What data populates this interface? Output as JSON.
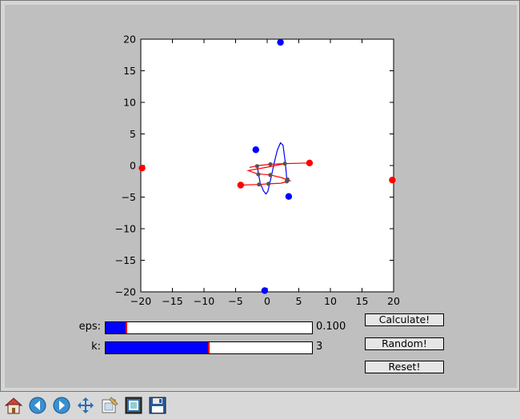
{
  "chart_data": {
    "type": "scatter",
    "xlim": [
      -20,
      20
    ],
    "ylim": [
      -20,
      20
    ],
    "xticks": [
      "−20",
      "−15",
      "−10",
      "−5",
      "0",
      "5",
      "10",
      "15",
      "20"
    ],
    "yticks": [
      "20",
      "15",
      "10",
      "5",
      "0",
      "−5",
      "−10",
      "−15",
      "−20"
    ],
    "grid": false,
    "series": [
      {
        "color": "#0000ff",
        "marker": "circle",
        "points": [
          [
            2.1,
            19.5
          ],
          [
            -1.8,
            2.5
          ],
          [
            3.4,
            -4.9
          ],
          [
            -0.4,
            -19.8
          ]
        ]
      },
      {
        "color": "#ff0000",
        "marker": "circle",
        "points": [
          [
            -19.8,
            -0.4
          ],
          [
            -4.2,
            -3.1
          ],
          [
            6.7,
            0.4
          ],
          [
            19.8,
            -2.3
          ]
        ]
      },
      {
        "color": "#555555",
        "marker": "small-circle",
        "points": [
          [
            -1.6,
            -0.1
          ],
          [
            0.5,
            0.2
          ],
          [
            2.8,
            0.3
          ],
          [
            -1.4,
            -1.4
          ],
          [
            0.5,
            -1.5
          ],
          [
            3.2,
            -2.2
          ],
          [
            -1.3,
            -3.0
          ],
          [
            0.2,
            -2.9
          ],
          [
            3.1,
            -2.5
          ]
        ]
      }
    ],
    "curves": [
      {
        "color": "#0000ff",
        "points": [
          [
            -1.6,
            0.2
          ],
          [
            -1.4,
            -1.2
          ],
          [
            -1.1,
            -2.8
          ],
          [
            -0.6,
            -4.0
          ],
          [
            -0.2,
            -4.5
          ],
          [
            0.1,
            -4.1
          ],
          [
            0.6,
            -2.0
          ],
          [
            1.1,
            0.4
          ],
          [
            1.6,
            2.4
          ],
          [
            2.1,
            3.6
          ],
          [
            2.5,
            3.2
          ],
          [
            2.8,
            1.0
          ],
          [
            3.0,
            -1.0
          ],
          [
            3.1,
            -2.4
          ]
        ]
      },
      {
        "color": "#ff0000",
        "points": [
          [
            -2.8,
            -0.3
          ],
          [
            -1.4,
            0.0
          ],
          [
            0.6,
            0.2
          ],
          [
            2.8,
            0.3
          ],
          [
            6.7,
            0.4
          ],
          [
            2.8,
            0.3
          ],
          [
            -0.2,
            -0.3
          ],
          [
            -3.0,
            -0.8
          ],
          [
            -1.6,
            -1.3
          ],
          [
            0.5,
            -1.5
          ],
          [
            2.2,
            -1.9
          ],
          [
            3.6,
            -2.4
          ],
          [
            2.2,
            -2.8
          ],
          [
            0.2,
            -2.9
          ],
          [
            -1.3,
            -3.0
          ],
          [
            -4.2,
            -3.1
          ]
        ]
      }
    ]
  },
  "sliders": {
    "eps": {
      "label": "eps:",
      "value_text": "0.100",
      "fraction": 0.1
    },
    "k": {
      "label": "k:",
      "value_text": "3",
      "fraction": 0.5
    }
  },
  "buttons": {
    "calculate": "Calculate!",
    "random": "Random!",
    "reset": "Reset!"
  },
  "toolbar": {
    "icons": [
      "home-icon",
      "back-arrow-icon",
      "forward-arrow-icon",
      "pan-move-icon",
      "configure-subplots-icon",
      "zoom-rect-icon",
      "save-floppy-icon"
    ]
  }
}
